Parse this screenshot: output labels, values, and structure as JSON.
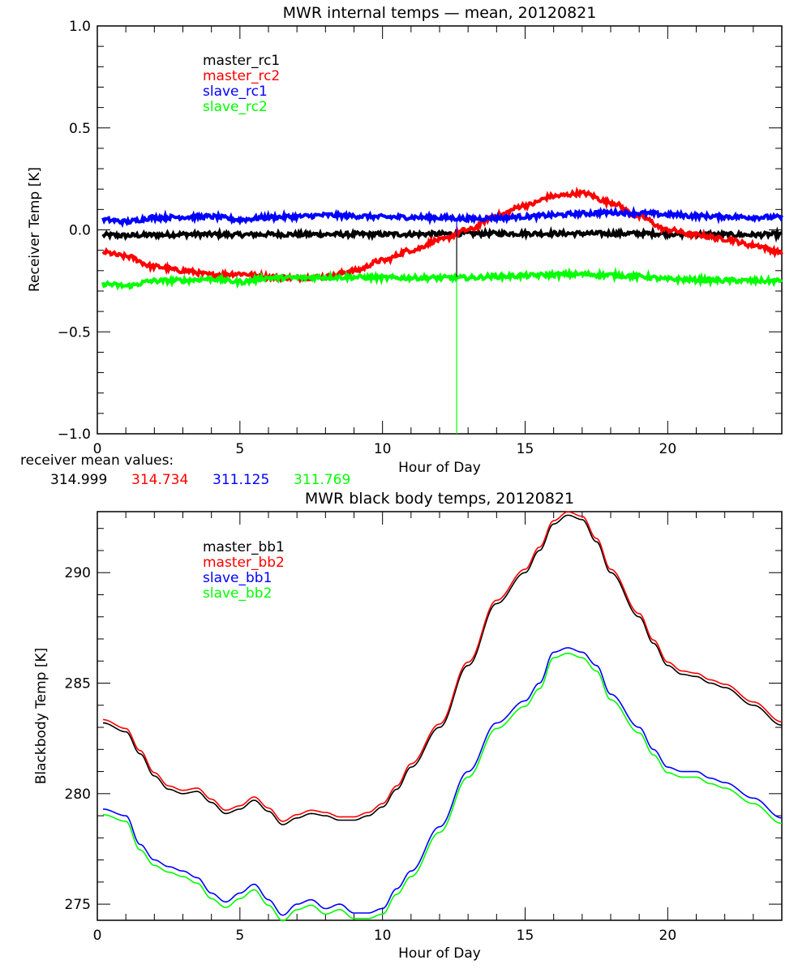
{
  "chart_data": [
    {
      "type": "line",
      "title": "MWR internal temps — mean, 20120821",
      "xlabel": "Hour of Day",
      "ylabel": "Receiver Temp [K]",
      "xlim": [
        0,
        24
      ],
      "ylim": [
        -1.0,
        1.0
      ],
      "xticks": [
        0,
        5,
        10,
        15,
        20
      ],
      "xtick_labels": [
        "0",
        "5",
        "10",
        "15",
        "20"
      ],
      "yticks": [
        1.0,
        0.5,
        0.0,
        -0.5,
        -1.0
      ],
      "ytick_labels": [
        "1.0",
        "0.5",
        "0.0",
        "−0.5",
        "−1.0"
      ],
      "grid": false,
      "legend_position": "top-left",
      "noisy": true,
      "x": [
        0.2,
        1,
        2,
        3,
        4,
        5,
        6,
        7,
        8,
        9,
        10,
        11,
        12,
        13,
        14,
        15,
        16,
        17,
        18,
        19,
        20,
        21,
        22,
        23,
        24
      ],
      "series": [
        {
          "name": "master_rc1",
          "color": "#000000",
          "values": [
            -0.025,
            -0.028,
            -0.025,
            -0.022,
            -0.022,
            -0.024,
            -0.022,
            -0.022,
            -0.022,
            -0.022,
            -0.022,
            -0.021,
            -0.02,
            -0.018,
            -0.018,
            -0.018,
            -0.018,
            -0.018,
            -0.018,
            -0.018,
            -0.019,
            -0.022,
            -0.024,
            -0.024,
            -0.022
          ]
        },
        {
          "name": "master_rc2",
          "color": "#ff0000",
          "values": [
            -0.11,
            -0.13,
            -0.18,
            -0.2,
            -0.22,
            -0.215,
            -0.23,
            -0.235,
            -0.23,
            -0.2,
            -0.15,
            -0.1,
            -0.05,
            0.0,
            0.07,
            0.12,
            0.165,
            0.18,
            0.135,
            0.065,
            0.0,
            -0.025,
            -0.045,
            -0.075,
            -0.11
          ]
        },
        {
          "name": "slave_rc1",
          "color": "#0000ff",
          "values": [
            0.05,
            0.04,
            0.06,
            0.063,
            0.065,
            0.05,
            0.062,
            0.065,
            0.072,
            0.068,
            0.063,
            0.062,
            0.06,
            0.055,
            0.058,
            0.065,
            0.072,
            0.08,
            0.085,
            0.082,
            0.075,
            0.068,
            0.065,
            0.062,
            0.062
          ]
        },
        {
          "name": "slave_rc2",
          "color": "#00ff00",
          "values": [
            -0.265,
            -0.275,
            -0.25,
            -0.248,
            -0.24,
            -0.255,
            -0.235,
            -0.235,
            -0.232,
            -0.232,
            -0.235,
            -0.235,
            -0.235,
            -0.235,
            -0.228,
            -0.225,
            -0.22,
            -0.218,
            -0.222,
            -0.228,
            -0.242,
            -0.245,
            -0.248,
            -0.25,
            -0.25
          ]
        }
      ],
      "spike": {
        "x": 12.6,
        "series": [
          {
            "name": "slave_rc2",
            "color": "#00ff00",
            "from": -0.235,
            "to": -1.0
          },
          {
            "name": "slave_rc1",
            "color": "#0000ff",
            "from": 0.06,
            "to": -0.03
          },
          {
            "name": "master_rc1",
            "color": "#000000",
            "from": -0.02,
            "to": -0.23
          }
        ]
      },
      "annotation": {
        "label": "receiver mean values:",
        "values": [
          {
            "text": "314.999",
            "color": "#000000"
          },
          {
            "text": "314.734",
            "color": "#ff0000"
          },
          {
            "text": "311.125",
            "color": "#0000ff"
          },
          {
            "text": "311.769",
            "color": "#00ff00"
          }
        ]
      }
    },
    {
      "type": "line",
      "title": "MWR black body temps, 20120821",
      "xlabel": "Hour of Day",
      "ylabel": "Blackbody Temp [K]",
      "xlim": [
        0,
        24
      ],
      "ylim": [
        274.27,
        292.76
      ],
      "xticks": [
        0,
        5,
        10,
        15,
        20
      ],
      "xtick_labels": [
        "0",
        "5",
        "10",
        "15",
        "20"
      ],
      "yticks": [
        275,
        280,
        285,
        290
      ],
      "ytick_labels": [
        "275",
        "280",
        "285",
        "290"
      ],
      "grid": false,
      "legend_position": "top-left",
      "noisy": false,
      "x": [
        0.2,
        1,
        1.5,
        2,
        2.5,
        3,
        3.5,
        4,
        4.5,
        5,
        5.5,
        6,
        6.5,
        7,
        7.5,
        8,
        8.5,
        9,
        9.5,
        10,
        10.5,
        11,
        12,
        13,
        14,
        15,
        15.5,
        16,
        16.5,
        17,
        17.5,
        18,
        19,
        19.5,
        20,
        20.5,
        21,
        21.5,
        22,
        23,
        24
      ],
      "series": [
        {
          "name": "master_bb1",
          "color": "#000000",
          "values": [
            283.2,
            282.8,
            281.8,
            280.8,
            280.2,
            280.0,
            280.1,
            279.6,
            279.1,
            279.3,
            279.7,
            279.2,
            278.6,
            278.9,
            279.1,
            279.0,
            278.8,
            278.8,
            279.0,
            279.4,
            280.2,
            281.2,
            283.0,
            285.8,
            288.6,
            290.0,
            291.0,
            292.2,
            292.6,
            292.4,
            291.4,
            290.0,
            288.0,
            286.8,
            285.8,
            285.4,
            285.3,
            285.0,
            284.8,
            284.0,
            283.1
          ]
        },
        {
          "name": "master_bb2",
          "color": "#ff0000",
          "values": [
            283.35,
            282.95,
            281.95,
            280.95,
            280.35,
            280.15,
            280.25,
            279.75,
            279.25,
            279.45,
            279.85,
            279.35,
            278.75,
            279.05,
            279.25,
            279.15,
            278.95,
            278.95,
            279.15,
            279.55,
            280.35,
            281.35,
            283.15,
            285.95,
            288.75,
            290.15,
            291.15,
            292.35,
            292.75,
            292.55,
            291.55,
            290.15,
            288.15,
            286.95,
            285.95,
            285.55,
            285.45,
            285.15,
            284.95,
            284.15,
            283.25
          ]
        },
        {
          "name": "slave_bb1",
          "color": "#0000ff",
          "values": [
            279.3,
            279.0,
            277.7,
            277.0,
            276.7,
            276.5,
            276.2,
            275.5,
            275.1,
            275.5,
            275.9,
            275.2,
            274.5,
            275.0,
            275.2,
            274.8,
            275.0,
            274.6,
            274.6,
            274.8,
            275.7,
            276.5,
            278.5,
            281.0,
            283.2,
            284.2,
            285.0,
            286.4,
            286.6,
            286.4,
            285.8,
            284.5,
            283.0,
            282.0,
            281.2,
            281.0,
            281.0,
            280.7,
            280.5,
            279.8,
            278.9
          ]
        },
        {
          "name": "slave_bb2",
          "color": "#00ff00",
          "values": [
            279.05,
            278.75,
            277.45,
            276.75,
            276.45,
            276.25,
            275.95,
            275.25,
            274.85,
            275.25,
            275.65,
            274.95,
            274.25,
            274.75,
            274.95,
            274.55,
            274.75,
            274.35,
            274.35,
            274.55,
            275.45,
            276.25,
            278.25,
            280.75,
            282.95,
            283.95,
            284.75,
            286.15,
            286.35,
            286.15,
            285.55,
            284.25,
            282.75,
            281.75,
            280.95,
            280.75,
            280.75,
            280.45,
            280.25,
            279.55,
            278.65
          ]
        }
      ]
    }
  ]
}
